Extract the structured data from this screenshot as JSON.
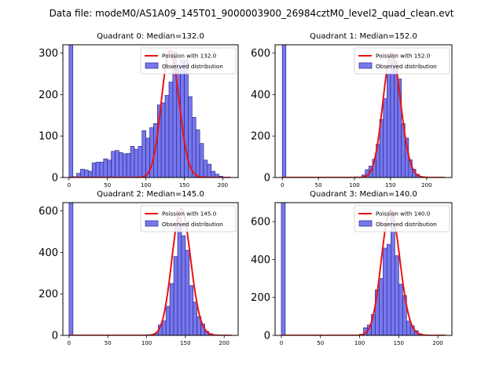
{
  "figure": {
    "suptitle": "Data file: modeM0/AS1A09_145T01_9000003900_26984cztM0_level2_quad_clean.evt"
  },
  "colors": {
    "hist_fill": "#7777ee",
    "hist_edge": "#2a2a8a",
    "poisson_line": "#ee1111",
    "axes": "#000000",
    "background": "#ffffff"
  },
  "chart_data": [
    {
      "type": "bar",
      "title": "Quadrant 0: Median=132.0",
      "xlim": [
        -8,
        220
      ],
      "ylim": [
        0,
        320
      ],
      "xticks": [
        0,
        50,
        100,
        150,
        200
      ],
      "yticks": [
        0,
        100,
        200,
        300
      ],
      "bin_width": 5,
      "legend": {
        "location": "top-right",
        "poisson_label": "Poission with 132.0",
        "observed_label": "Observed distribution"
      },
      "bins": [
        {
          "x": 0,
          "value": 320
        },
        {
          "x": 5,
          "value": 2
        },
        {
          "x": 10,
          "value": 10
        },
        {
          "x": 15,
          "value": 20
        },
        {
          "x": 20,
          "value": 18
        },
        {
          "x": 25,
          "value": 15
        },
        {
          "x": 30,
          "value": 35
        },
        {
          "x": 35,
          "value": 37
        },
        {
          "x": 40,
          "value": 37
        },
        {
          "x": 45,
          "value": 45
        },
        {
          "x": 50,
          "value": 42
        },
        {
          "x": 55,
          "value": 63
        },
        {
          "x": 60,
          "value": 65
        },
        {
          "x": 65,
          "value": 60
        },
        {
          "x": 70,
          "value": 57
        },
        {
          "x": 75,
          "value": 58
        },
        {
          "x": 80,
          "value": 75
        },
        {
          "x": 85,
          "value": 68
        },
        {
          "x": 90,
          "value": 75
        },
        {
          "x": 95,
          "value": 113
        },
        {
          "x": 100,
          "value": 95
        },
        {
          "x": 105,
          "value": 120
        },
        {
          "x": 110,
          "value": 130
        },
        {
          "x": 115,
          "value": 175
        },
        {
          "x": 120,
          "value": 180
        },
        {
          "x": 125,
          "value": 198
        },
        {
          "x": 130,
          "value": 230
        },
        {
          "x": 135,
          "value": 303
        },
        {
          "x": 140,
          "value": 267
        },
        {
          "x": 145,
          "value": 283
        },
        {
          "x": 150,
          "value": 283
        },
        {
          "x": 155,
          "value": 195
        },
        {
          "x": 160,
          "value": 145
        },
        {
          "x": 165,
          "value": 115
        },
        {
          "x": 170,
          "value": 82
        },
        {
          "x": 175,
          "value": 42
        },
        {
          "x": 180,
          "value": 32
        },
        {
          "x": 185,
          "value": 15
        },
        {
          "x": 190,
          "value": 8
        },
        {
          "x": 195,
          "value": 3
        }
      ],
      "poisson": {
        "mu": 132.0,
        "scale": 306,
        "x_range": [
          0,
          210
        ]
      }
    },
    {
      "type": "bar",
      "title": "Quadrant 1: Median=152.0",
      "xlim": [
        -10,
        235
      ],
      "ylim": [
        0,
        640
      ],
      "xticks": [
        0,
        50,
        100,
        150,
        200
      ],
      "yticks": [
        0,
        200,
        400,
        600
      ],
      "bin_width": 5,
      "legend": {
        "location": "top-right",
        "poisson_label": "Poission with 152.0",
        "observed_label": "Observed distribution"
      },
      "bins": [
        {
          "x": 0,
          "value": 640
        },
        {
          "x": 90,
          "value": 2
        },
        {
          "x": 95,
          "value": 1
        },
        {
          "x": 100,
          "value": 3
        },
        {
          "x": 110,
          "value": 12
        },
        {
          "x": 115,
          "value": 38
        },
        {
          "x": 120,
          "value": 55
        },
        {
          "x": 125,
          "value": 88
        },
        {
          "x": 130,
          "value": 160
        },
        {
          "x": 135,
          "value": 280
        },
        {
          "x": 140,
          "value": 380
        },
        {
          "x": 145,
          "value": 500
        },
        {
          "x": 150,
          "value": 600
        },
        {
          "x": 155,
          "value": 560
        },
        {
          "x": 160,
          "value": 475
        },
        {
          "x": 165,
          "value": 260
        },
        {
          "x": 170,
          "value": 190
        },
        {
          "x": 175,
          "value": 85
        },
        {
          "x": 180,
          "value": 40
        },
        {
          "x": 185,
          "value": 15
        },
        {
          "x": 190,
          "value": 5
        }
      ],
      "poisson": {
        "mu": 152.0,
        "scale": 600,
        "x_range": [
          0,
          225
        ]
      }
    },
    {
      "type": "bar",
      "title": "Quadrant 2: Median=145.0",
      "xlim": [
        -8,
        218
      ],
      "ylim": [
        0,
        640
      ],
      "xticks": [
        0,
        50,
        100,
        150,
        200
      ],
      "yticks": [
        0,
        200,
        400,
        600
      ],
      "bin_width": 5,
      "legend": {
        "location": "top-right",
        "poisson_label": "Poission with 145.0",
        "observed_label": "Observed distribution"
      },
      "bins": [
        {
          "x": 0,
          "value": 640
        },
        {
          "x": 90,
          "value": 1
        },
        {
          "x": 100,
          "value": 3
        },
        {
          "x": 105,
          "value": 4
        },
        {
          "x": 110,
          "value": 10
        },
        {
          "x": 115,
          "value": 50
        },
        {
          "x": 120,
          "value": 70
        },
        {
          "x": 125,
          "value": 140
        },
        {
          "x": 130,
          "value": 250
        },
        {
          "x": 135,
          "value": 380
        },
        {
          "x": 140,
          "value": 570
        },
        {
          "x": 145,
          "value": 480
        },
        {
          "x": 150,
          "value": 410
        },
        {
          "x": 155,
          "value": 240
        },
        {
          "x": 160,
          "value": 160
        },
        {
          "x": 165,
          "value": 90
        },
        {
          "x": 170,
          "value": 55
        },
        {
          "x": 175,
          "value": 20
        },
        {
          "x": 180,
          "value": 8
        }
      ],
      "poisson": {
        "mu": 145.0,
        "scale": 610,
        "x_range": [
          0,
          210
        ]
      }
    },
    {
      "type": "bar",
      "title": "Quadrant 3: Median=140.0",
      "xlim": [
        -8,
        218
      ],
      "ylim": [
        0,
        700
      ],
      "xticks": [
        0,
        50,
        100,
        150,
        200
      ],
      "yticks": [
        0,
        200,
        400,
        600
      ],
      "bin_width": 5,
      "legend": {
        "location": "top-right",
        "poisson_label": "Poission with 140.0",
        "observed_label": "Observed distribution"
      },
      "bins": [
        {
          "x": 0,
          "value": 700
        },
        {
          "x": 85,
          "value": 1
        },
        {
          "x": 95,
          "value": 2
        },
        {
          "x": 100,
          "value": 6
        },
        {
          "x": 105,
          "value": 40
        },
        {
          "x": 110,
          "value": 55
        },
        {
          "x": 115,
          "value": 110
        },
        {
          "x": 120,
          "value": 240
        },
        {
          "x": 125,
          "value": 300
        },
        {
          "x": 130,
          "value": 460
        },
        {
          "x": 135,
          "value": 480
        },
        {
          "x": 140,
          "value": 640
        },
        {
          "x": 145,
          "value": 420
        },
        {
          "x": 150,
          "value": 270
        },
        {
          "x": 155,
          "value": 210
        },
        {
          "x": 160,
          "value": 75
        },
        {
          "x": 165,
          "value": 50
        },
        {
          "x": 170,
          "value": 25
        },
        {
          "x": 175,
          "value": 8
        }
      ],
      "poisson": {
        "mu": 140.0,
        "scale": 660,
        "x_range": [
          0,
          210
        ]
      }
    }
  ]
}
